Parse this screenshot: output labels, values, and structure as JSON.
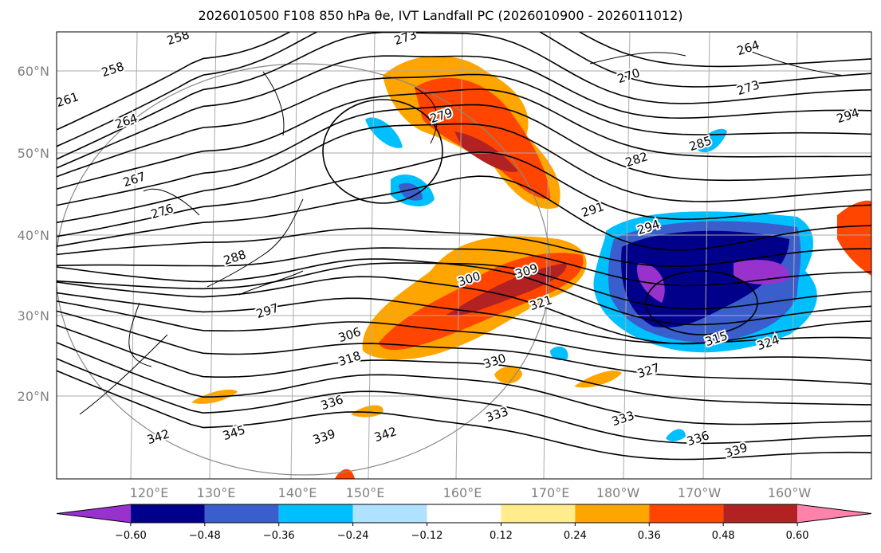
{
  "title": "2026010500 F108 850 hPa θe, IVT Landfall PC (2026010900 - 2026011012)",
  "lat_labels": [
    "60°N",
    "50°N",
    "40°N",
    "30°N",
    "20°N"
  ],
  "lon_labels": [
    "120°E",
    "130°E",
    "140°E",
    "150°E",
    "160°E",
    "170°E",
    "180°W",
    "170°W",
    "160°W"
  ],
  "contour_labels": [
    "258",
    "258",
    "261",
    "264",
    "267",
    "276",
    "288",
    "297",
    "306",
    "318",
    "300",
    "309",
    "321",
    "330",
    "336",
    "339",
    "342",
    "345",
    "342",
    "333",
    "333",
    "327",
    "336",
    "339",
    "324",
    "315",
    "294",
    "291",
    "282",
    "285",
    "270",
    "264",
    "273",
    "294",
    "273",
    "279"
  ],
  "colorbar": {
    "colors": [
      "#9932CC",
      "#00008B",
      "#3A5FCD",
      "#00BFFF",
      "#B0E2FF",
      "#FFFFFF",
      "#FFEC8B",
      "#FFA500",
      "#FF4500",
      "#B22222",
      "#FF82AB"
    ],
    "tick_labels": [
      "−0.60",
      "−0.48",
      "−0.36",
      "−0.24",
      "−0.12",
      "0.12",
      "0.24",
      "0.36",
      "0.48",
      "0.60"
    ]
  }
}
